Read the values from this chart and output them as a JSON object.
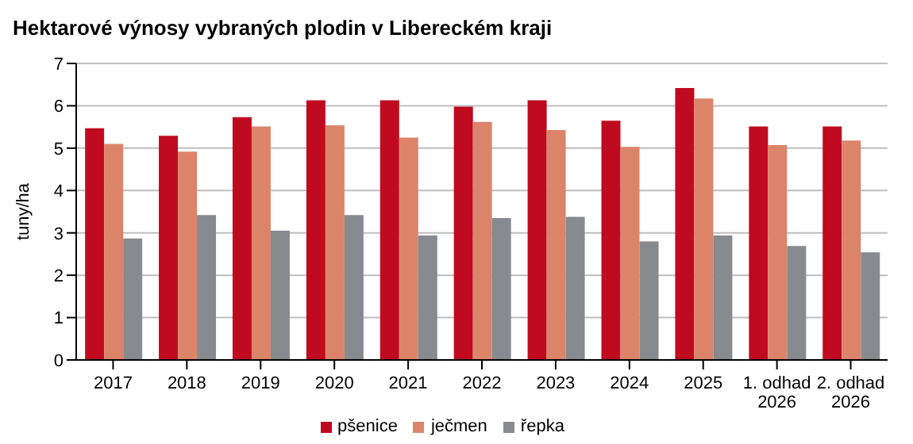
{
  "chart_data": {
    "type": "bar",
    "title": "Hektarové výnosy vybraných plodin v Libereckém kraji",
    "ylabel": "tuny/ha",
    "categories": [
      "2017",
      "2018",
      "2019",
      "2020",
      "2021",
      "2022",
      "2023",
      "2024",
      "2025",
      "1. odhad\n2026",
      "2. odhad\n2026"
    ],
    "series": [
      {
        "name": "pšenice",
        "color": "#c00a20",
        "values": [
          5.47,
          5.29,
          5.73,
          6.13,
          6.13,
          5.98,
          6.13,
          5.65,
          6.42,
          5.51,
          5.51
        ]
      },
      {
        "name": "ječmen",
        "color": "#dc846a",
        "values": [
          5.1,
          4.92,
          5.51,
          5.54,
          5.25,
          5.62,
          5.43,
          5.03,
          6.17,
          5.07,
          5.18
        ]
      },
      {
        "name": "řepka",
        "color": "#878a8f",
        "values": [
          2.87,
          3.42,
          3.05,
          3.42,
          2.94,
          3.35,
          3.38,
          2.8,
          2.94,
          2.69,
          2.54
        ]
      }
    ],
    "ylim": [
      0,
      7
    ],
    "yticks": [
      0,
      1,
      2,
      3,
      4,
      5,
      6,
      7
    ],
    "grid": "y",
    "legend": "bottom"
  }
}
